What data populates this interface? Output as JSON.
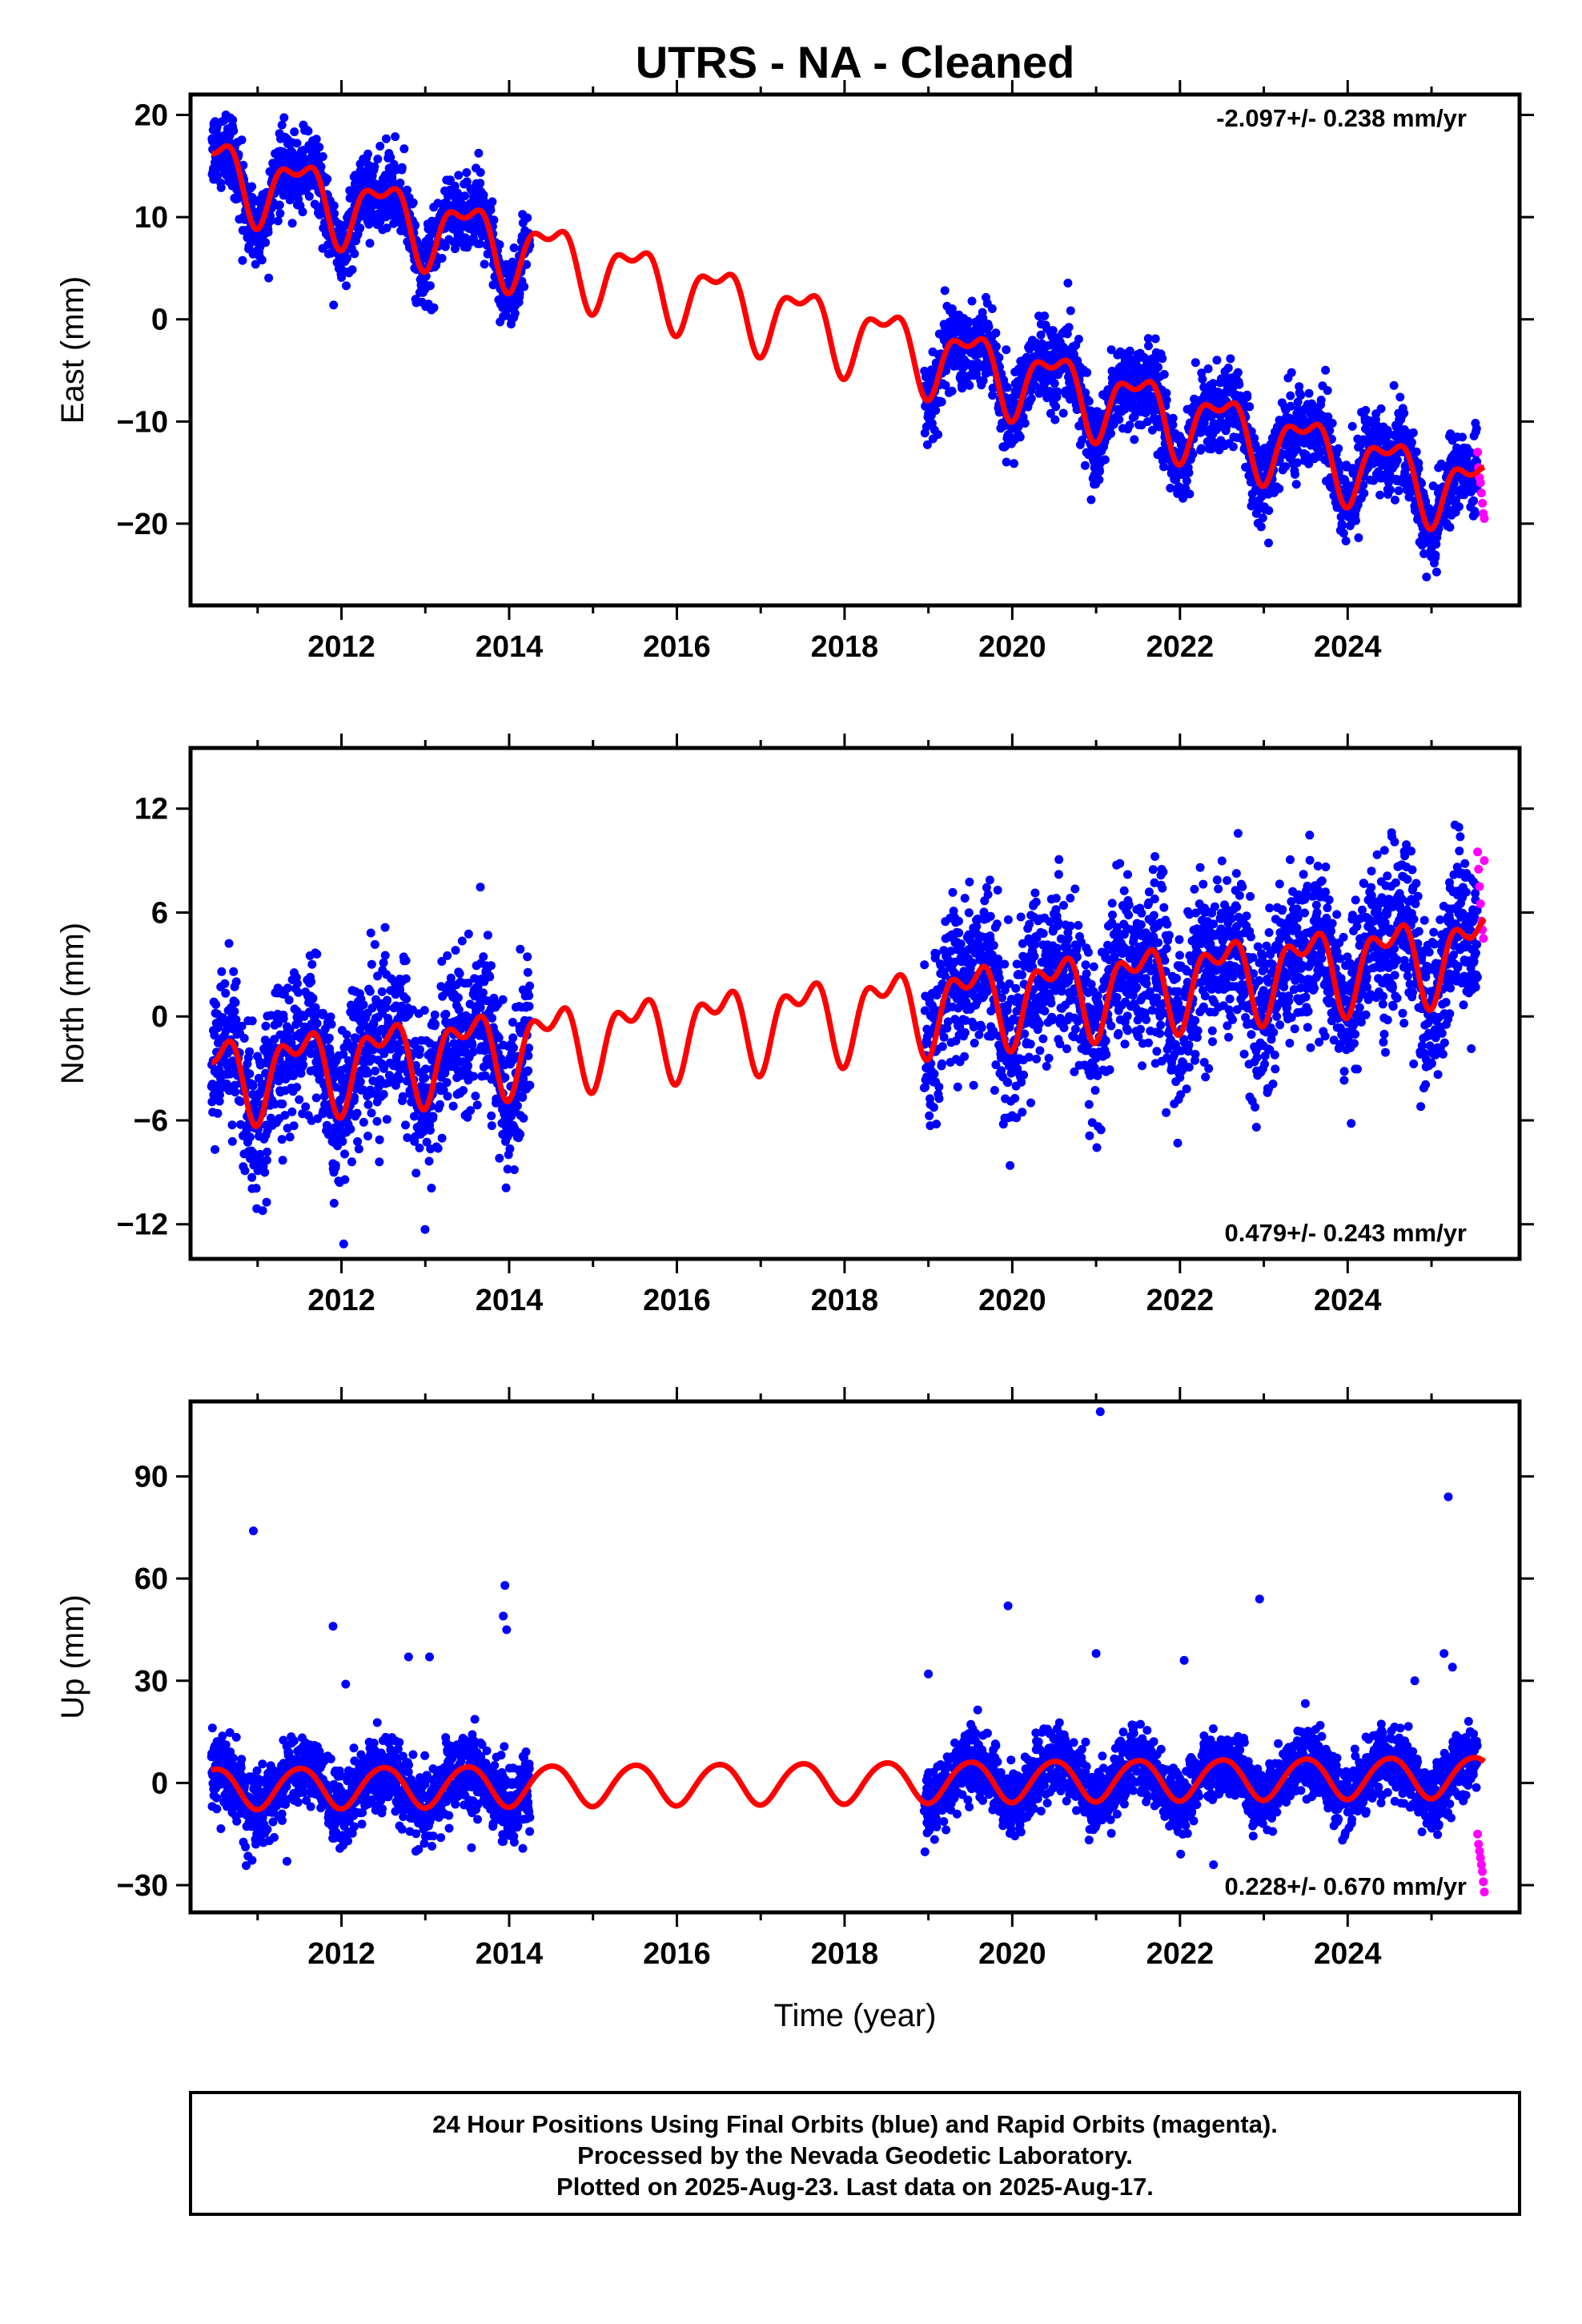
{
  "colors": {
    "final_orbits": "#0000ff",
    "rapid_orbits": "#ff00ff",
    "model": "#ff0000",
    "frame": "#000000"
  },
  "chart_data": [
    {
      "type": "scatter",
      "title": "UTRS  - NA - Cleaned",
      "ylabel": "East (mm)",
      "xlabel": "",
      "annotation": "-2.097+/- 0.238 mm/yr",
      "annotation_position": "top-right",
      "xlim": [
        2010.2,
        2026.05
      ],
      "ylim": [
        -28,
        22
      ],
      "xticks": [
        2012,
        2014,
        2016,
        2018,
        2020,
        2022,
        2024
      ],
      "xtick_labels": [
        "2012",
        "2014",
        "2016",
        "2018",
        "2020",
        "2022",
        "2024"
      ],
      "yticks": [
        -20,
        -10,
        0,
        10,
        20
      ],
      "ytick_labels": [
        "−20",
        "−10",
        "0",
        "10",
        "20"
      ],
      "grid": false,
      "model": {
        "intercept_at_2010_5": 14.5,
        "rate_mm_per_yr": -2.097,
        "annual_amplitude": 3.2,
        "semiannual_amplitude": 1.5
      },
      "final_orbit_segments": [
        {
          "start": 2010.45,
          "end": 2014.25,
          "scatter": 1.8
        },
        {
          "start": 2018.95,
          "end": 2025.55,
          "scatter": 2.0
        }
      ],
      "rapid_orbit_segment": {
        "start": 2025.55,
        "end": 2025.63,
        "values": [
          -13,
          -14.5,
          -15.5,
          -16,
          -17,
          -18,
          -19,
          -19.5
        ]
      }
    },
    {
      "type": "scatter",
      "title": "",
      "ylabel": "North (mm)",
      "xlabel": "",
      "annotation": "0.479+/- 0.243 mm/yr",
      "annotation_position": "bottom-right",
      "xlim": [
        2010.2,
        2026.05
      ],
      "ylim": [
        -14,
        15.5
      ],
      "xticks": [
        2012,
        2014,
        2016,
        2018,
        2020,
        2022,
        2024
      ],
      "xtick_labels": [
        "2012",
        "2014",
        "2016",
        "2018",
        "2020",
        "2022",
        "2024"
      ],
      "yticks": [
        -12,
        -6,
        0,
        6,
        12
      ],
      "ytick_labels": [
        "−12",
        "−6",
        "0",
        "6",
        "12"
      ],
      "grid": false,
      "model": {
        "intercept_at_2010_5": -3.4,
        "rate_mm_per_yr": 0.479,
        "annual_amplitude": 2.0,
        "semiannual_amplitude": 1.2
      },
      "final_orbit_segments": [
        {
          "start": 2010.45,
          "end": 2014.25,
          "scatter": 2.2
        },
        {
          "start": 2018.95,
          "end": 2025.55,
          "scatter": 2.3
        }
      ],
      "rapid_orbit_segment": {
        "start": 2025.55,
        "end": 2025.63,
        "values": [
          9.5,
          8.5,
          7.5,
          6.5,
          5.5,
          5,
          4.5,
          9
        ]
      }
    },
    {
      "type": "scatter",
      "title": "",
      "ylabel": "Up (mm)",
      "xlabel": "Time (year)",
      "annotation": "0.228+/- 0.670 mm/yr",
      "annotation_position": "bottom-right",
      "xlim": [
        2010.2,
        2026.05
      ],
      "ylim": [
        -38,
        112
      ],
      "xticks": [
        2012,
        2014,
        2016,
        2018,
        2020,
        2022,
        2024
      ],
      "xtick_labels": [
        "2012",
        "2014",
        "2016",
        "2018",
        "2020",
        "2022",
        "2024"
      ],
      "yticks": [
        -30,
        0,
        30,
        60,
        90
      ],
      "ytick_labels": [
        "−30",
        "0",
        "30",
        "60",
        "90"
      ],
      "grid": false,
      "model": {
        "intercept_at_2010_5": -1.5,
        "rate_mm_per_yr": 0.228,
        "annual_amplitude": 6.0,
        "semiannual_amplitude": 0.5
      },
      "final_orbit_segments": [
        {
          "start": 2010.45,
          "end": 2014.25,
          "scatter": 5.5
        },
        {
          "start": 2018.95,
          "end": 2025.55,
          "scatter": 5.0
        }
      ],
      "outliers": [
        {
          "x": 2010.95,
          "y": 74
        },
        {
          "x": 2011.9,
          "y": 46
        },
        {
          "x": 2012.05,
          "y": 29
        },
        {
          "x": 2012.8,
          "y": 37
        },
        {
          "x": 2013.05,
          "y": 37
        },
        {
          "x": 2013.95,
          "y": 58
        },
        {
          "x": 2013.93,
          "y": 49
        },
        {
          "x": 2013.97,
          "y": 45
        },
        {
          "x": 2019.0,
          "y": 32
        },
        {
          "x": 2019.95,
          "y": 52
        },
        {
          "x": 2021.05,
          "y": 109
        },
        {
          "x": 2021.0,
          "y": 38
        },
        {
          "x": 2022.05,
          "y": 36
        },
        {
          "x": 2022.95,
          "y": 54
        },
        {
          "x": 2024.8,
          "y": 30
        },
        {
          "x": 2025.2,
          "y": 84
        },
        {
          "x": 2025.15,
          "y": 38
        },
        {
          "x": 2025.25,
          "y": 34
        },
        {
          "x": 2011.35,
          "y": -23
        },
        {
          "x": 2013.55,
          "y": -19
        },
        {
          "x": 2022.4,
          "y": -24
        }
      ],
      "rapid_orbit_segment": {
        "start": 2025.55,
        "end": 2025.63,
        "values": [
          -15,
          -18,
          -20,
          -22,
          -24,
          -26,
          -29,
          -32
        ]
      }
    }
  ],
  "footer": {
    "line1": "24 Hour Positions Using Final Orbits (blue) and Rapid Orbits (magenta).",
    "line2": "Processed by the Nevada Geodetic Laboratory.",
    "line3": "Plotted on 2025-Aug-23. Last data on 2025-Aug-17."
  }
}
